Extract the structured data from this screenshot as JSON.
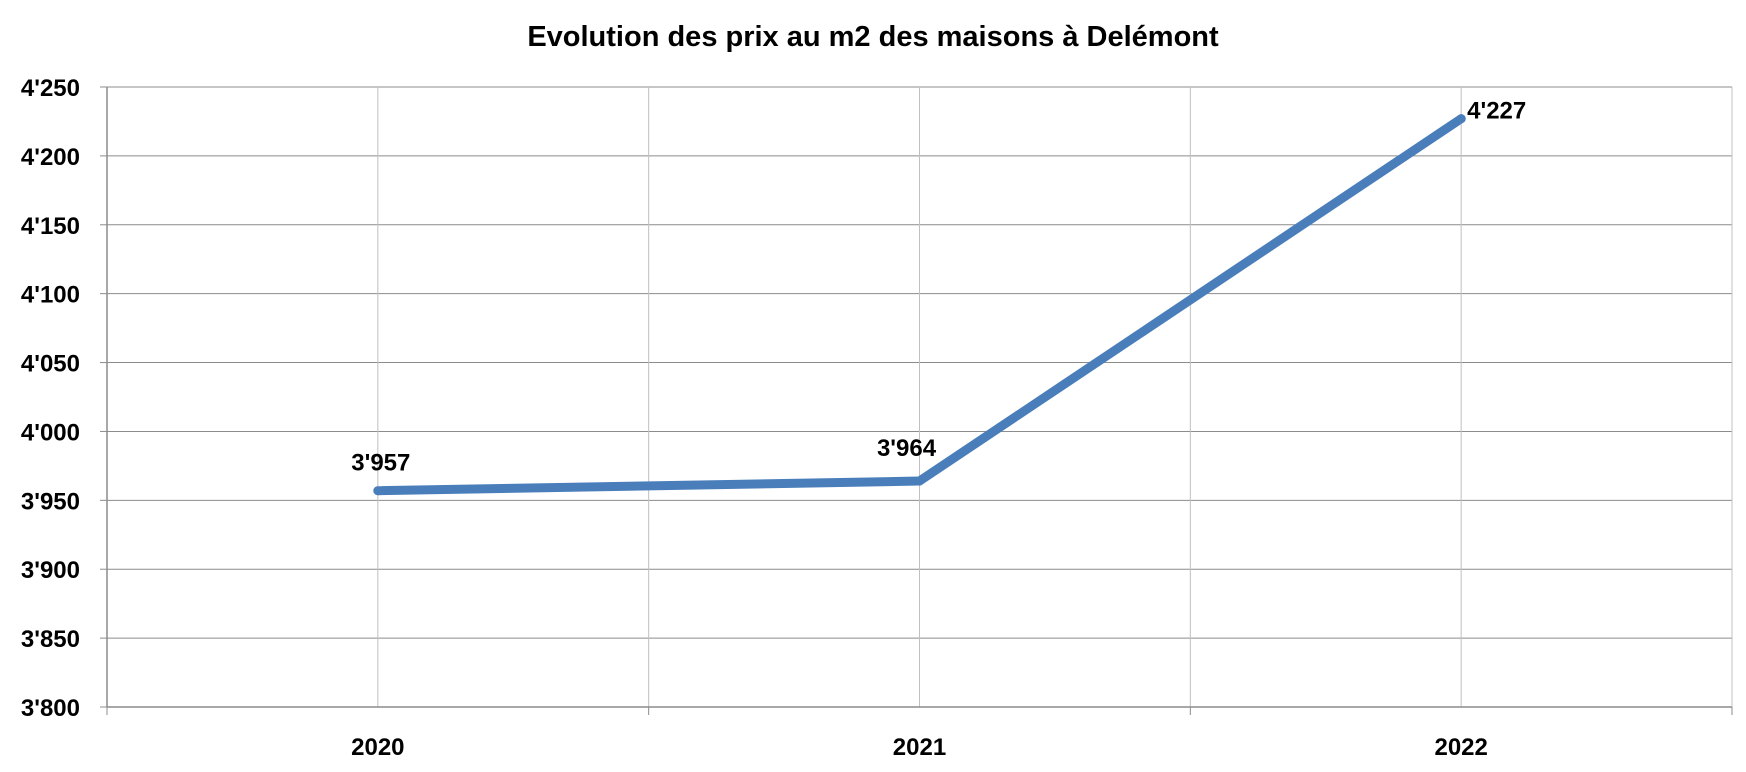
{
  "chart_data": {
    "type": "line",
    "title": "Evolution des prix au m2 des maisons à Delémont",
    "xlabel": "",
    "ylabel": "",
    "categories": [
      "2020",
      "2021",
      "2022"
    ],
    "series": [
      {
        "values": [
          3957,
          3964,
          4227
        ],
        "color": "#4a7ebb"
      }
    ],
    "data_labels": [
      "3'957",
      "3'964",
      "4'227"
    ],
    "ylim": [
      3800,
      4250
    ],
    "yticks": [
      3800,
      3850,
      3900,
      3950,
      4000,
      4050,
      4100,
      4150,
      4200,
      4250
    ],
    "ytick_labels": [
      "3'800",
      "3'850",
      "3'900",
      "3'950",
      "4'000",
      "4'050",
      "4'100",
      "4'150",
      "4'200",
      "4'250"
    ],
    "grid": true,
    "legend": "none"
  }
}
